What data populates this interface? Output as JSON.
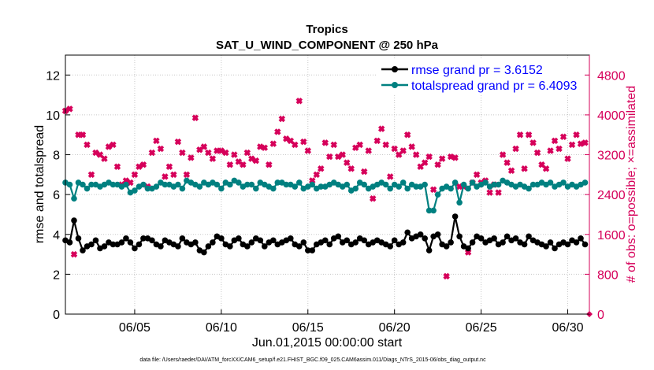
{
  "chart_data": {
    "type": "line",
    "title": "Tropics",
    "subtitle": "SAT_U_WIND_COMPONENT @ 250 hPa",
    "xlabel": "Jun.01,2015 00:00:00 start",
    "ylabel": "rmse and totalspread",
    "y2label": "# of obs: o=possible; ×=assimilated",
    "footnote": "data file: /Users/raeder/DAI/ATM_forcXX/CAM6_setup/f.e21.FHIST_BGC.f09_025.CAM6assim.011/Diags_NTrS_2015-06/obs_diag_output.nc",
    "xlim": [
      1,
      31.25
    ],
    "ylim": [
      0,
      13
    ],
    "y2lim": [
      0,
      5200
    ],
    "x_ticks": [
      5,
      10,
      15,
      20,
      25,
      30
    ],
    "x_tick_labels": [
      "06/05",
      "06/10",
      "06/15",
      "06/20",
      "06/25",
      "06/30"
    ],
    "y_ticks": [
      0,
      2,
      4,
      6,
      8,
      10,
      12
    ],
    "y_tick_labels": [
      "0",
      "2",
      "4",
      "6",
      "8",
      "10",
      "12"
    ],
    "y2_ticks": [
      0,
      800,
      1600,
      2400,
      3200,
      4000,
      4800
    ],
    "y2_tick_labels": [
      "0",
      "800",
      "1600",
      "2400",
      "3200",
      "4000",
      "4800"
    ],
    "grid": true,
    "legend_position": "top-right",
    "colors": {
      "rmse": "#000000",
      "spread": "#008080",
      "obs": "#d6005a",
      "legend_text": "#0000ff",
      "right_axis": "#d6005a"
    },
    "series": [
      {
        "name": "rmse grand pr = 3.6152",
        "axis": "left",
        "x": [
          1.0,
          1.25,
          1.5,
          1.75,
          2.0,
          2.25,
          2.5,
          2.75,
          3.0,
          3.25,
          3.5,
          3.75,
          4.0,
          4.25,
          4.5,
          4.75,
          5.0,
          5.25,
          5.5,
          5.75,
          6.0,
          6.25,
          6.5,
          6.75,
          7.0,
          7.25,
          7.5,
          7.75,
          8.0,
          8.25,
          8.5,
          8.75,
          9.0,
          9.25,
          9.5,
          9.75,
          10.0,
          10.25,
          10.5,
          10.75,
          11.0,
          11.25,
          11.5,
          11.75,
          12.0,
          12.25,
          12.5,
          12.75,
          13.0,
          13.25,
          13.5,
          13.75,
          14.0,
          14.25,
          14.5,
          14.75,
          15.0,
          15.25,
          15.5,
          15.75,
          16.0,
          16.25,
          16.5,
          16.75,
          17.0,
          17.25,
          17.5,
          17.75,
          18.0,
          18.25,
          18.5,
          18.75,
          19.0,
          19.25,
          19.5,
          19.75,
          20.0,
          20.25,
          20.5,
          20.75,
          21.0,
          21.25,
          21.5,
          21.75,
          22.0,
          22.25,
          22.5,
          22.75,
          23.0,
          23.25,
          23.5,
          23.75,
          24.0,
          24.25,
          24.5,
          24.75,
          25.0,
          25.25,
          25.5,
          25.75,
          26.0,
          26.25,
          26.5,
          26.75,
          27.0,
          27.25,
          27.5,
          27.75,
          28.0,
          28.25,
          28.5,
          28.75,
          29.0,
          29.25,
          29.5,
          29.75,
          30.0,
          30.25,
          30.5,
          30.75,
          31.0
        ],
        "values": [
          3.7,
          3.6,
          4.7,
          3.8,
          3.2,
          3.4,
          3.5,
          3.7,
          3.3,
          3.4,
          3.6,
          3.5,
          3.5,
          3.6,
          3.8,
          3.6,
          3.3,
          3.5,
          3.8,
          3.8,
          3.7,
          3.5,
          3.4,
          3.7,
          3.6,
          3.5,
          3.4,
          3.8,
          3.6,
          3.5,
          3.6,
          3.2,
          3.1,
          3.4,
          3.6,
          3.9,
          3.8,
          3.5,
          3.4,
          3.7,
          3.8,
          3.5,
          3.4,
          3.6,
          3.8,
          3.7,
          3.4,
          3.6,
          3.7,
          3.5,
          3.6,
          3.7,
          3.8,
          3.5,
          3.4,
          3.6,
          3.2,
          3.2,
          3.5,
          3.6,
          3.7,
          3.5,
          3.8,
          3.9,
          3.6,
          3.7,
          3.5,
          3.6,
          3.8,
          3.7,
          3.5,
          3.6,
          3.7,
          3.6,
          3.5,
          3.4,
          3.7,
          3.5,
          3.6,
          4.1,
          3.8,
          3.9,
          4.0,
          3.8,
          3.2,
          3.9,
          4.0,
          3.5,
          3.4,
          3.6,
          4.9,
          3.9,
          3.4,
          3.3,
          3.6,
          3.9,
          3.8,
          3.6,
          3.7,
          3.8,
          3.5,
          3.6,
          3.9,
          3.7,
          3.8,
          3.6,
          3.5,
          3.9,
          3.7,
          3.6,
          3.5,
          3.4,
          3.6,
          3.3,
          3.5,
          3.6,
          3.5,
          3.7,
          3.6,
          3.8,
          3.5
        ]
      },
      {
        "name": "totalspread grand pr = 6.4093",
        "axis": "left",
        "x": [
          1.0,
          1.25,
          1.5,
          1.75,
          2.0,
          2.25,
          2.5,
          2.75,
          3.0,
          3.25,
          3.5,
          3.75,
          4.0,
          4.25,
          4.5,
          4.75,
          5.0,
          5.25,
          5.5,
          5.75,
          6.0,
          6.25,
          6.5,
          6.75,
          7.0,
          7.25,
          7.5,
          7.75,
          8.0,
          8.25,
          8.5,
          8.75,
          9.0,
          9.25,
          9.5,
          9.75,
          10.0,
          10.25,
          10.5,
          10.75,
          11.0,
          11.25,
          11.5,
          11.75,
          12.0,
          12.25,
          12.5,
          12.75,
          13.0,
          13.25,
          13.5,
          13.75,
          14.0,
          14.25,
          14.5,
          14.75,
          15.0,
          15.25,
          15.5,
          15.75,
          16.0,
          16.25,
          16.5,
          16.75,
          17.0,
          17.25,
          17.5,
          17.75,
          18.0,
          18.25,
          18.5,
          18.75,
          19.0,
          19.25,
          19.5,
          19.75,
          20.0,
          20.25,
          20.5,
          20.75,
          21.0,
          21.25,
          21.5,
          21.75,
          22.0,
          22.25,
          22.5,
          22.75,
          23.0,
          23.25,
          23.5,
          23.75,
          24.0,
          24.25,
          24.5,
          24.75,
          25.0,
          25.25,
          25.5,
          25.75,
          26.0,
          26.25,
          26.5,
          26.75,
          27.0,
          27.25,
          27.5,
          27.75,
          28.0,
          28.25,
          28.5,
          28.75,
          29.0,
          29.25,
          29.5,
          29.75,
          30.0,
          30.25,
          30.5,
          30.75,
          31.0
        ],
        "values": [
          6.6,
          6.5,
          5.8,
          6.6,
          6.5,
          6.3,
          6.5,
          6.5,
          6.4,
          6.5,
          6.6,
          6.5,
          6.5,
          6.4,
          6.5,
          6.1,
          6.2,
          6.4,
          6.5,
          6.3,
          6.3,
          6.4,
          6.6,
          6.5,
          6.5,
          6.4,
          6.5,
          6.3,
          6.7,
          6.6,
          6.5,
          6.4,
          6.6,
          6.5,
          6.6,
          6.5,
          6.3,
          6.6,
          6.5,
          6.7,
          6.6,
          6.4,
          6.5,
          6.5,
          6.3,
          6.6,
          6.5,
          6.4,
          6.3,
          6.6,
          6.6,
          6.5,
          6.5,
          6.4,
          6.6,
          6.3,
          6.4,
          6.5,
          6.3,
          6.4,
          6.4,
          6.5,
          6.6,
          6.5,
          6.4,
          6.5,
          6.2,
          6.3,
          6.6,
          6.5,
          6.3,
          6.4,
          6.5,
          6.6,
          6.5,
          6.3,
          6.5,
          6.4,
          6.6,
          6.3,
          6.5,
          6.4,
          6.4,
          6.5,
          5.2,
          5.2,
          6.0,
          6.3,
          6.4,
          6.3,
          6.6,
          5.6,
          6.5,
          6.3,
          6.6,
          6.4,
          6.5,
          6.6,
          6.4,
          6.5,
          6.5,
          6.7,
          6.6,
          6.5,
          6.4,
          6.5,
          6.4,
          6.3,
          6.5,
          6.5,
          6.6,
          6.5,
          6.6,
          6.4,
          6.5,
          6.6,
          6.4,
          6.5,
          6.4,
          6.5,
          6.6
        ]
      },
      {
        "name": "# of obs assimilated",
        "axis": "right",
        "x": [
          1.0,
          1.25,
          1.5,
          1.75,
          2.0,
          2.25,
          2.5,
          2.75,
          3.0,
          3.25,
          3.5,
          3.75,
          4.0,
          4.25,
          4.5,
          4.75,
          5.0,
          5.25,
          5.5,
          5.75,
          6.0,
          6.25,
          6.5,
          6.75,
          7.0,
          7.25,
          7.5,
          7.75,
          8.0,
          8.25,
          8.5,
          8.75,
          9.0,
          9.25,
          9.5,
          9.75,
          10.0,
          10.25,
          10.5,
          10.75,
          11.0,
          11.25,
          11.5,
          11.75,
          12.0,
          12.25,
          12.5,
          12.75,
          13.0,
          13.25,
          13.5,
          13.75,
          14.0,
          14.25,
          14.5,
          14.75,
          15.0,
          15.25,
          15.5,
          15.75,
          16.0,
          16.25,
          16.5,
          16.75,
          17.0,
          17.25,
          17.5,
          17.75,
          18.0,
          18.25,
          18.5,
          18.75,
          19.0,
          19.25,
          19.5,
          19.75,
          20.0,
          20.25,
          20.5,
          20.75,
          21.0,
          21.25,
          21.5,
          21.75,
          22.0,
          22.25,
          22.5,
          22.75,
          23.0,
          23.25,
          23.5,
          23.75,
          24.0,
          24.25,
          24.5,
          24.75,
          25.0,
          25.25,
          25.5,
          25.75,
          26.0,
          26.25,
          26.5,
          26.75,
          27.0,
          27.25,
          27.5,
          27.75,
          28.0,
          28.25,
          28.5,
          28.75,
          29.0,
          29.25,
          29.5,
          29.75,
          30.0,
          30.25,
          30.5,
          30.75,
          31.0
        ],
        "values": [
          4080,
          4120,
          1200,
          3600,
          3600,
          3400,
          2800,
          3240,
          3200,
          3120,
          3360,
          3400,
          2960,
          2600,
          2680,
          2640,
          2800,
          2960,
          3000,
          2560,
          3240,
          3480,
          3320,
          2760,
          2960,
          2800,
          3460,
          3240,
          2800,
          3140,
          3940,
          3300,
          3360,
          3240,
          3120,
          3280,
          3280,
          3240,
          3000,
          3200,
          3060,
          3000,
          3240,
          3120,
          3080,
          3360,
          3340,
          3000,
          3420,
          3660,
          3920,
          3520,
          3480,
          3400,
          4280,
          3460,
          3280,
          2680,
          2800,
          2920,
          3440,
          3160,
          3400,
          3160,
          3200,
          3040,
          2920,
          3340,
          3400,
          2860,
          3280,
          2320,
          3480,
          3720,
          3400,
          2760,
          3320,
          3200,
          3280,
          3600,
          3360,
          3200,
          2960,
          3040,
          3160,
          2500,
          3000,
          3120,
          760,
          3160,
          3140,
          2560,
          2560,
          1240,
          2640,
          2800,
          2640,
          2680,
          2440,
          2600,
          2440,
          3200,
          3040,
          2880,
          3320,
          3600,
          2920,
          3600,
          3440,
          3240,
          3000,
          2920,
          3280,
          3480,
          3320,
          3560,
          3120,
          3400,
          3600,
          3420,
          3440
        ]
      }
    ]
  }
}
